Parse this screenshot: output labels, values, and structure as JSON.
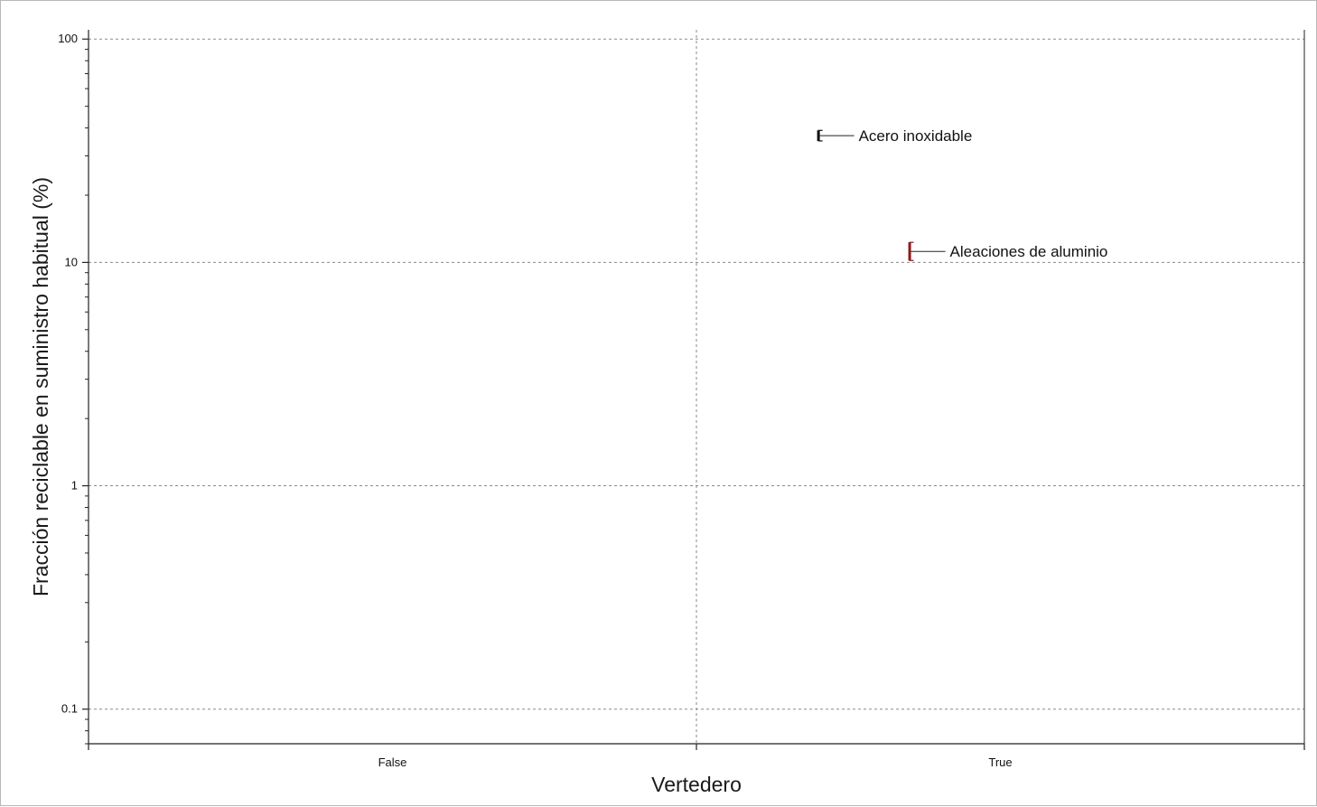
{
  "chart_data": {
    "type": "scatter",
    "title": "",
    "xlabel": "Vertedero",
    "ylabel": "Fracción reciclable en suministro habitual (%)",
    "x_categories": [
      "False",
      "True"
    ],
    "y_scale": "log",
    "ylim": [
      0.07,
      110
    ],
    "y_ticks": [
      {
        "value": 0.1,
        "label": "0.1"
      },
      {
        "value": 1,
        "label": "1"
      },
      {
        "value": 10,
        "label": "10"
      },
      {
        "value": 100,
        "label": "100"
      }
    ],
    "grid": true,
    "points": [
      {
        "label": "Acero inoxidable",
        "category": "True",
        "offset": 0.2,
        "y_low": 35,
        "y_high": 39,
        "color": "#111111"
      },
      {
        "label": "Aleaciones de aluminio",
        "category": "True",
        "offset": 0.35,
        "y_low": 10.2,
        "y_high": 12.3,
        "color": "#8b1a1a"
      }
    ]
  }
}
